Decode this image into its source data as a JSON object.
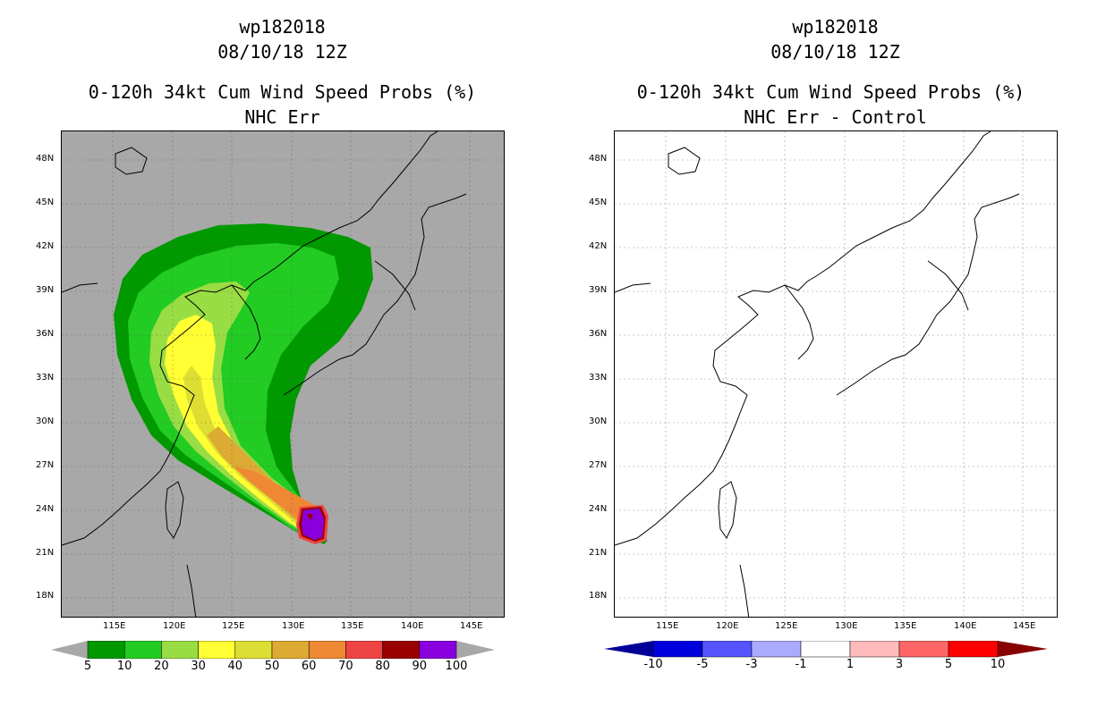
{
  "left_panel": {
    "title_storm": "wp182018",
    "title_time": "08/10/18 12Z",
    "title_product": "0-120h 34kt Cum Wind Speed Probs (%)",
    "title_sub": "NHC Err",
    "background": "#a8a8a8",
    "colorbar": {
      "colors": [
        "#009900",
        "#22cc22",
        "#99dd44",
        "#ffff33",
        "#dddd33",
        "#ddaa33",
        "#ee8833",
        "#ee4444",
        "#990000",
        "#8800dd"
      ],
      "labels": [
        "5",
        "10",
        "20",
        "30",
        "40",
        "50",
        "60",
        "70",
        "80",
        "90",
        "100"
      ],
      "end_color": "#a8a8a8"
    }
  },
  "right_panel": {
    "title_storm": "wp182018",
    "title_time": "08/10/18 12Z",
    "title_product": "0-120h 34kt Cum Wind Speed Probs (%)",
    "title_sub": "NHC Err - Control",
    "background": "#ffffff",
    "colorbar": {
      "colors": [
        "#0000dd",
        "#5555ff",
        "#aaaaff",
        "#ffffff",
        "#ffbbbb",
        "#ff6666",
        "#ff0000"
      ],
      "labels": [
        "-10",
        "-5",
        "-3",
        "-1",
        "1",
        "3",
        "5",
        "10"
      ],
      "end_low_color": "#000099",
      "end_high_color": "#880000"
    }
  },
  "axes": {
    "lat_labels": [
      "48N",
      "45N",
      "42N",
      "39N",
      "36N",
      "33N",
      "30N",
      "27N",
      "24N",
      "21N",
      "18N"
    ],
    "lon_labels": [
      "115E",
      "120E",
      "125E",
      "130E",
      "135E",
      "140E",
      "145E"
    ]
  }
}
